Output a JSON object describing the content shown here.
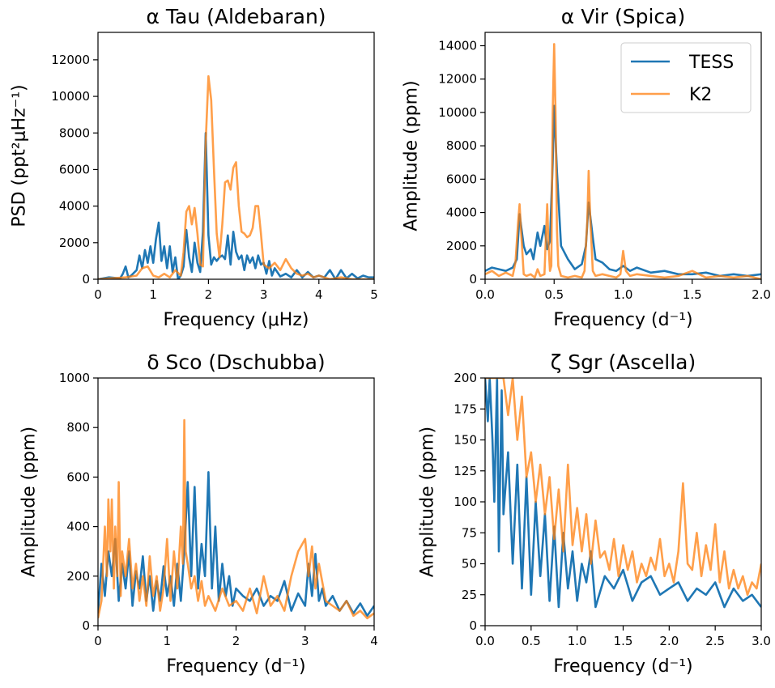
{
  "colors": {
    "tess": "#1f77b4",
    "k2": "#ff7f0e"
  },
  "legend": {
    "items": [
      {
        "label": "TESS",
        "color": "#1f77b4"
      },
      {
        "label": "K2",
        "color": "#ff7f0e"
      }
    ]
  },
  "chart_data": [
    {
      "type": "line",
      "title": "α Tau (Aldebaran)",
      "xlabel": "Frequency (μHz)",
      "ylabel": "PSD (ppt²μHz⁻¹)",
      "xlim": [
        0,
        5
      ],
      "ylim": [
        0,
        13500
      ],
      "xticks": [
        0,
        1,
        2,
        3,
        4,
        5
      ],
      "yticks": [
        0,
        2000,
        4000,
        6000,
        8000,
        10000,
        12000
      ],
      "series": [
        {
          "name": "TESS",
          "color": "#1f77b4",
          "x": [
            0,
            0.2,
            0.4,
            0.45,
            0.5,
            0.55,
            0.6,
            0.7,
            0.75,
            0.8,
            0.85,
            0.9,
            0.95,
            1.0,
            1.05,
            1.1,
            1.15,
            1.2,
            1.25,
            1.3,
            1.35,
            1.4,
            1.45,
            1.5,
            1.55,
            1.6,
            1.65,
            1.7,
            1.75,
            1.8,
            1.85,
            1.9,
            1.95,
            2.0,
            2.05,
            2.1,
            2.15,
            2.2,
            2.25,
            2.3,
            2.35,
            2.4,
            2.45,
            2.5,
            2.55,
            2.6,
            2.65,
            2.7,
            2.75,
            2.8,
            2.85,
            2.9,
            2.95,
            3.0,
            3.05,
            3.1,
            3.15,
            3.2,
            3.3,
            3.4,
            3.5,
            3.6,
            3.7,
            3.8,
            3.9,
            4.0,
            4.1,
            4.2,
            4.3,
            4.4,
            4.5,
            4.6,
            4.7,
            4.8,
            4.9,
            5.0
          ],
          "y": [
            0,
            100,
            50,
            300,
            700,
            100,
            200,
            500,
            1300,
            600,
            1600,
            900,
            1800,
            900,
            2200,
            3100,
            1000,
            1800,
            600,
            1800,
            400,
            1200,
            0,
            200,
            700,
            2700,
            1200,
            400,
            2000,
            900,
            400,
            2600,
            8000,
            2400,
            800,
            1200,
            1000,
            1200,
            1300,
            1100,
            2400,
            800,
            2600,
            1500,
            1100,
            1300,
            500,
            1300,
            900,
            1200,
            600,
            1300,
            800,
            900,
            300,
            1000,
            200,
            600,
            150,
            300,
            100,
            500,
            100,
            400,
            100,
            200,
            100,
            500,
            0,
            500,
            50,
            300,
            50,
            200,
            100,
            100
          ]
        },
        {
          "name": "K2",
          "color": "#ff7f0e",
          "x": [
            0,
            0.5,
            0.7,
            0.8,
            0.9,
            1.0,
            1.1,
            1.2,
            1.3,
            1.4,
            1.5,
            1.55,
            1.6,
            1.65,
            1.7,
            1.75,
            1.8,
            1.85,
            1.9,
            1.95,
            2.0,
            2.05,
            2.1,
            2.15,
            2.2,
            2.25,
            2.3,
            2.35,
            2.4,
            2.45,
            2.5,
            2.55,
            2.6,
            2.65,
            2.7,
            2.75,
            2.8,
            2.85,
            2.9,
            2.95,
            3.0,
            3.1,
            3.2,
            3.3,
            3.4,
            3.5,
            3.6,
            3.7,
            3.8,
            3.9,
            4.0,
            4.2,
            4.4,
            4.6,
            5.0
          ],
          "y": [
            0,
            100,
            200,
            600,
            700,
            200,
            100,
            300,
            100,
            500,
            200,
            1500,
            3700,
            4000,
            3000,
            3900,
            2500,
            800,
            700,
            7500,
            11100,
            9800,
            6000,
            2500,
            1200,
            3000,
            5300,
            5400,
            4900,
            6100,
            6400,
            4000,
            2600,
            2500,
            2300,
            2400,
            2800,
            4000,
            4000,
            2500,
            800,
            600,
            900,
            500,
            1100,
            600,
            300,
            200,
            300,
            100,
            200,
            0,
            100,
            0,
            0
          ]
        }
      ]
    },
    {
      "type": "line",
      "title": "α Vir (Spica)",
      "xlabel": "Frequency (d⁻¹)",
      "ylabel": "Amplitude (ppm)",
      "xlim": [
        0,
        2
      ],
      "ylim": [
        0,
        14800
      ],
      "xticks": [
        0.0,
        0.5,
        1.0,
        1.5,
        2.0
      ],
      "yticks": [
        0,
        2000,
        4000,
        6000,
        8000,
        10000,
        12000,
        14000
      ],
      "legend": "top-right",
      "series": [
        {
          "name": "TESS",
          "color": "#1f77b4",
          "x": [
            0,
            0.05,
            0.1,
            0.15,
            0.2,
            0.23,
            0.25,
            0.28,
            0.3,
            0.33,
            0.35,
            0.38,
            0.4,
            0.43,
            0.45,
            0.47,
            0.49,
            0.5,
            0.52,
            0.55,
            0.6,
            0.65,
            0.7,
            0.73,
            0.75,
            0.78,
            0.8,
            0.85,
            0.9,
            0.95,
            1.0,
            1.05,
            1.1,
            1.2,
            1.3,
            1.4,
            1.5,
            1.6,
            1.7,
            1.8,
            1.9,
            2.0
          ],
          "y": [
            500,
            700,
            600,
            500,
            700,
            1200,
            3900,
            2000,
            1500,
            1800,
            1200,
            2800,
            2000,
            3200,
            1800,
            2300,
            7000,
            10400,
            6500,
            2000,
            1200,
            600,
            900,
            2000,
            4600,
            2500,
            1200,
            1000,
            600,
            500,
            800,
            500,
            700,
            400,
            500,
            300,
            300,
            400,
            200,
            300,
            200,
            300
          ]
        },
        {
          "name": "K2",
          "color": "#ff7f0e",
          "x": [
            0,
            0.05,
            0.1,
            0.15,
            0.2,
            0.22,
            0.24,
            0.25,
            0.26,
            0.28,
            0.3,
            0.33,
            0.36,
            0.38,
            0.4,
            0.43,
            0.45,
            0.46,
            0.47,
            0.48,
            0.49,
            0.5,
            0.51,
            0.52,
            0.53,
            0.55,
            0.6,
            0.65,
            0.7,
            0.72,
            0.74,
            0.75,
            0.76,
            0.78,
            0.8,
            0.85,
            0.9,
            0.95,
            0.98,
            1.0,
            1.02,
            1.05,
            1.1,
            1.2,
            1.3,
            1.4,
            1.5,
            1.6,
            1.7,
            1.8,
            1.9,
            2.0
          ],
          "y": [
            300,
            500,
            200,
            400,
            200,
            1000,
            3500,
            4500,
            3000,
            300,
            200,
            300,
            100,
            600,
            200,
            300,
            4500,
            2000,
            500,
            800,
            10000,
            14100,
            10000,
            3000,
            800,
            200,
            100,
            200,
            100,
            500,
            3500,
            6500,
            4000,
            500,
            200,
            300,
            200,
            100,
            300,
            1700,
            500,
            200,
            300,
            200,
            100,
            200,
            500,
            100,
            200,
            100,
            200,
            0
          ]
        }
      ]
    },
    {
      "type": "line",
      "title": "δ Sco (Dschubba)",
      "xlabel": "Frequency (d⁻¹)",
      "ylabel": "Amplitude (ppm)",
      "xlim": [
        0,
        4
      ],
      "ylim": [
        0,
        1000
      ],
      "xticks": [
        0,
        1,
        2,
        3,
        4
      ],
      "yticks": [
        0,
        200,
        400,
        600,
        800,
        1000
      ],
      "series": [
        {
          "name": "TESS",
          "color": "#1f77b4",
          "x": [
            0,
            0.05,
            0.1,
            0.15,
            0.2,
            0.25,
            0.3,
            0.35,
            0.4,
            0.45,
            0.5,
            0.55,
            0.6,
            0.65,
            0.7,
            0.75,
            0.8,
            0.85,
            0.9,
            0.95,
            1.0,
            1.05,
            1.1,
            1.15,
            1.2,
            1.25,
            1.3,
            1.35,
            1.4,
            1.45,
            1.5,
            1.55,
            1.6,
            1.65,
            1.7,
            1.75,
            1.8,
            1.85,
            1.9,
            1.95,
            2.0,
            2.1,
            2.2,
            2.3,
            2.4,
            2.5,
            2.6,
            2.7,
            2.8,
            2.9,
            3.0,
            3.05,
            3.1,
            3.15,
            3.2,
            3.25,
            3.3,
            3.4,
            3.5,
            3.6,
            3.7,
            3.8,
            3.9,
            4.0
          ],
          "y": [
            50,
            250,
            120,
            300,
            200,
            350,
            100,
            250,
            150,
            300,
            80,
            220,
            150,
            280,
            100,
            200,
            60,
            180,
            100,
            240,
            120,
            200,
            80,
            250,
            100,
            300,
            580,
            200,
            560,
            150,
            330,
            200,
            620,
            150,
            400,
            100,
            250,
            120,
            200,
            80,
            150,
            120,
            100,
            150,
            80,
            120,
            100,
            180,
            60,
            130,
            80,
            250,
            120,
            290,
            100,
            150,
            80,
            120,
            60,
            100,
            50,
            90,
            40,
            80
          ]
        },
        {
          "name": "K2",
          "color": "#ff7f0e",
          "x": [
            0,
            0.05,
            0.1,
            0.13,
            0.15,
            0.18,
            0.2,
            0.23,
            0.25,
            0.28,
            0.3,
            0.33,
            0.35,
            0.4,
            0.45,
            0.5,
            0.55,
            0.6,
            0.65,
            0.7,
            0.75,
            0.8,
            0.85,
            0.9,
            0.95,
            1.0,
            1.05,
            1.1,
            1.15,
            1.2,
            1.23,
            1.25,
            1.27,
            1.3,
            1.35,
            1.4,
            1.45,
            1.5,
            1.55,
            1.6,
            1.7,
            1.8,
            1.9,
            2.0,
            2.1,
            2.2,
            2.3,
            2.4,
            2.5,
            2.6,
            2.7,
            2.8,
            2.9,
            3.0,
            3.05,
            3.1,
            3.15,
            3.2,
            3.3,
            3.4,
            3.5,
            3.6,
            3.7,
            3.8,
            3.9,
            4.0
          ],
          "y": [
            30,
            100,
            400,
            200,
            510,
            300,
            510,
            150,
            400,
            200,
            580,
            120,
            300,
            200,
            350,
            150,
            250,
            100,
            200,
            80,
            280,
            120,
            200,
            60,
            150,
            350,
            100,
            300,
            150,
            400,
            250,
            830,
            300,
            250,
            150,
            200,
            100,
            180,
            80,
            120,
            60,
            150,
            80,
            100,
            60,
            150,
            50,
            200,
            80,
            120,
            60,
            200,
            300,
            350,
            200,
            320,
            150,
            250,
            100,
            80,
            60,
            100,
            40,
            60,
            30,
            50
          ]
        }
      ]
    },
    {
      "type": "line",
      "title": "ζ Sgr (Ascella)",
      "xlabel": "Frequency (d⁻¹)",
      "ylabel": "Amplitude (ppm)",
      "xlim": [
        0,
        3
      ],
      "ylim": [
        0,
        200
      ],
      "xticks": [
        0.0,
        0.5,
        1.0,
        1.5,
        2.0,
        2.5,
        3.0
      ],
      "yticks": [
        0,
        25,
        50,
        75,
        100,
        125,
        150,
        175,
        200
      ],
      "series": [
        {
          "name": "TESS",
          "color": "#1f77b4",
          "x": [
            0,
            0.03,
            0.05,
            0.08,
            0.1,
            0.13,
            0.15,
            0.18,
            0.2,
            0.25,
            0.3,
            0.35,
            0.4,
            0.45,
            0.5,
            0.55,
            0.6,
            0.65,
            0.7,
            0.75,
            0.8,
            0.85,
            0.9,
            0.95,
            1.0,
            1.05,
            1.1,
            1.15,
            1.2,
            1.3,
            1.4,
            1.5,
            1.6,
            1.7,
            1.8,
            1.9,
            2.0,
            2.1,
            2.2,
            2.3,
            2.4,
            2.5,
            2.6,
            2.7,
            2.8,
            2.9,
            3.0
          ],
          "y": [
            200,
            165,
            200,
            150,
            100,
            200,
            60,
            190,
            90,
            140,
            50,
            130,
            30,
            120,
            25,
            100,
            40,
            90,
            20,
            80,
            15,
            75,
            30,
            60,
            20,
            50,
            35,
            60,
            15,
            40,
            30,
            45,
            20,
            35,
            40,
            25,
            30,
            35,
            20,
            30,
            25,
            35,
            15,
            30,
            20,
            25,
            15
          ]
        },
        {
          "name": "K2",
          "color": "#ff7f0e",
          "x": [
            0,
            0.05,
            0.1,
            0.15,
            0.2,
            0.25,
            0.3,
            0.35,
            0.4,
            0.45,
            0.5,
            0.55,
            0.6,
            0.65,
            0.7,
            0.75,
            0.8,
            0.85,
            0.9,
            0.95,
            1.0,
            1.05,
            1.1,
            1.15,
            1.2,
            1.25,
            1.3,
            1.35,
            1.4,
            1.45,
            1.5,
            1.55,
            1.6,
            1.65,
            1.7,
            1.75,
            1.8,
            1.85,
            1.9,
            1.95,
            2.0,
            2.05,
            2.1,
            2.15,
            2.2,
            2.25,
            2.3,
            2.35,
            2.4,
            2.45,
            2.5,
            2.55,
            2.6,
            2.65,
            2.7,
            2.75,
            2.8,
            2.85,
            2.9,
            2.95,
            3.0
          ],
          "y": [
            200,
            200,
            200,
            200,
            200,
            170,
            200,
            150,
            185,
            120,
            140,
            100,
            130,
            90,
            120,
            70,
            110,
            60,
            130,
            65,
            95,
            60,
            90,
            50,
            85,
            55,
            60,
            45,
            70,
            40,
            65,
            45,
            60,
            35,
            50,
            40,
            55,
            45,
            70,
            40,
            50,
            35,
            60,
            115,
            50,
            45,
            75,
            40,
            65,
            45,
            82,
            35,
            60,
            30,
            45,
            30,
            40,
            25,
            35,
            30,
            50
          ]
        }
      ]
    }
  ]
}
